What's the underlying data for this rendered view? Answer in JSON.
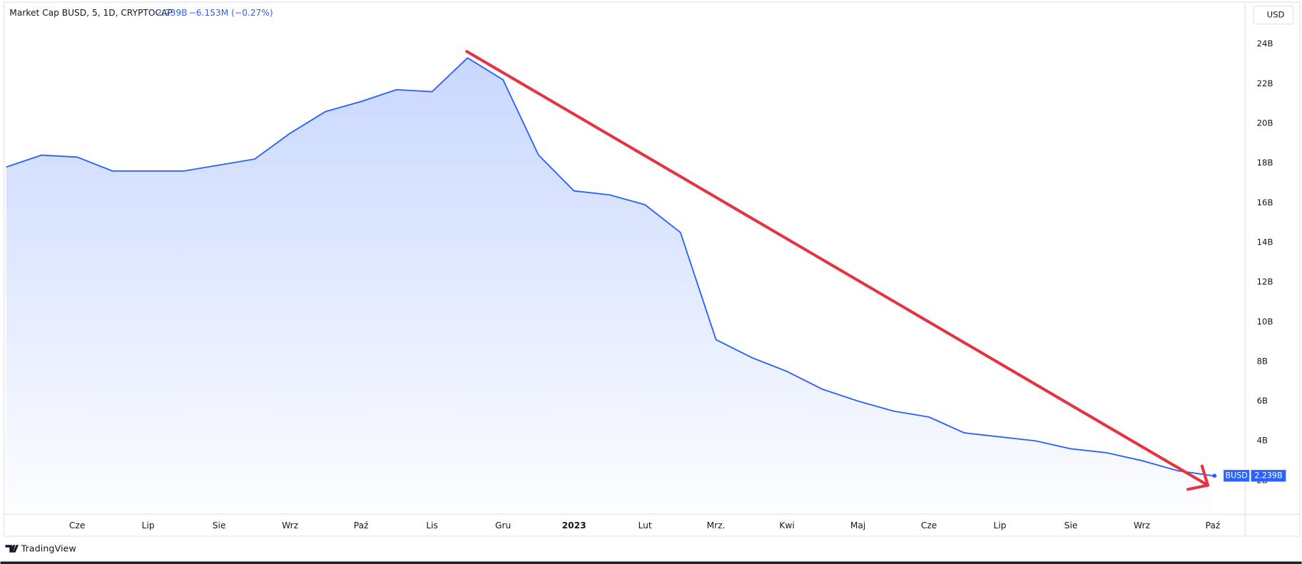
{
  "header": {
    "title": "Market Cap BUSD, 5, 1D, CRYPTOCAP",
    "last": "2.239B",
    "change": "−6.153M (−0.27%)",
    "currency": "USD",
    "brand": "TradingView"
  },
  "chart_data": {
    "type": "area",
    "categories": [
      null,
      null,
      "Cze",
      null,
      "Lip",
      null,
      "Sie",
      null,
      "Wrz",
      null,
      "Paź",
      null,
      "Lis",
      null,
      "Gru",
      null,
      "2023",
      null,
      "Lut",
      null,
      "Mrz.",
      null,
      "Kwi",
      null,
      "Maj",
      null,
      "Cze",
      null,
      "Lip",
      null,
      "Sie",
      null,
      "Wrz",
      null,
      "Paź"
    ],
    "series": [
      {
        "name": "BUSD",
        "color": "#2962ff",
        "values": [
          17.8,
          18.4,
          18.3,
          17.6,
          17.6,
          17.6,
          17.9,
          18.2,
          19.5,
          20.6,
          21.1,
          21.7,
          21.6,
          23.3,
          22.2,
          18.4,
          16.6,
          16.4,
          15.9,
          14.5,
          9.1,
          8.2,
          7.5,
          6.6,
          6.0,
          5.5,
          5.2,
          4.4,
          4.2,
          4.0,
          3.6,
          3.4,
          3.0,
          2.5,
          2.239
        ]
      }
    ],
    "ylim": [
      0.3,
      25.8
    ],
    "yticks": [
      {
        "value": 2,
        "label": "2B"
      },
      {
        "value": 4,
        "label": "4B"
      },
      {
        "value": 6,
        "label": "6B"
      },
      {
        "value": 8,
        "label": "8B"
      },
      {
        "value": 10,
        "label": "10B"
      },
      {
        "value": 12,
        "label": "12B"
      },
      {
        "value": 14,
        "label": "14B"
      },
      {
        "value": 16,
        "label": "16B"
      },
      {
        "value": 18,
        "label": "18B"
      },
      {
        "value": 20,
        "label": "20B"
      },
      {
        "value": 22,
        "label": "22B"
      },
      {
        "value": 24,
        "label": "24B"
      }
    ],
    "grid": false
  }
}
